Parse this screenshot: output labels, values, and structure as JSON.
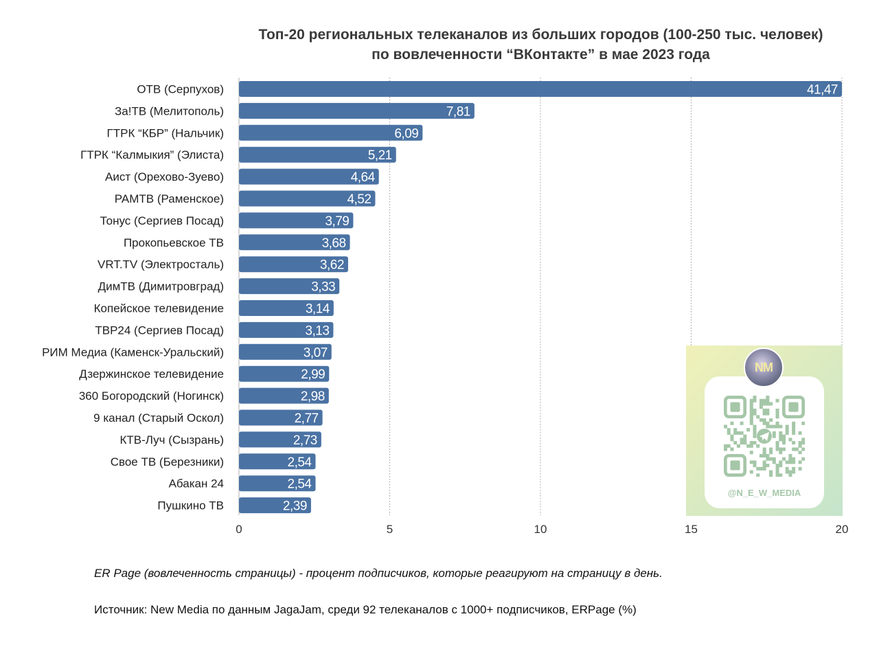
{
  "chart_data": {
    "type": "bar",
    "orientation": "horizontal",
    "title_lines": [
      "Топ-20 региональных телеканалов из больших городов (100-250 тыс. человек)",
      "по вовлеченности “ВКонтакте” в мае 2023 года"
    ],
    "categories": [
      "ОТВ (Серпухов)",
      "За!ТВ (Мелитополь)",
      "ГТРК “КБР” (Нальчик)",
      "ГТРК “Калмыкия” (Элиста)",
      "Аист (Орехово-Зуево)",
      "РАМТВ (Раменское)",
      "Тонус (Сергиев Посад)",
      "Прокопьевское ТВ",
      "VRT.TV (Электросталь)",
      "ДимТВ (Димитровград)",
      "Копейское телевидение",
      "ТВР24 (Сергиев Посад)",
      "РИМ Медиа (Каменск-Уральский)",
      "Дзержинское телевидение",
      "360 Богородский (Ногинск)",
      "9 канал (Старый Оскол)",
      "КТВ-Луч (Сызрань)",
      "Свое ТВ (Березники)",
      "Абакан 24",
      "Пушкино ТВ"
    ],
    "values": [
      41.47,
      7.81,
      6.09,
      5.21,
      4.64,
      4.52,
      3.79,
      3.68,
      3.62,
      3.33,
      3.14,
      3.13,
      3.07,
      2.99,
      2.98,
      2.77,
      2.73,
      2.54,
      2.54,
      2.39
    ],
    "value_labels": [
      "41,47",
      "7,81",
      "6,09",
      "5,21",
      "4,64",
      "4,52",
      "3,79",
      "3,68",
      "3,62",
      "3,33",
      "3,14",
      "3,13",
      "3,07",
      "2,99",
      "2,98",
      "2,77",
      "2,73",
      "2,54",
      "2,54",
      "2,39"
    ],
    "xlim": [
      0,
      20
    ],
    "xticks": [
      0,
      5,
      10,
      15,
      20
    ],
    "bars_truncated_at_axis_max": true,
    "grid": "vertical-dotted",
    "legend": "none",
    "bar_color": "#4a72a3"
  },
  "notes": {
    "definition": "ER Page (вовлеченность страницы) - процент подписчиков, которые реагируют на страницу в день.",
    "source": "Источник: New Media по данным JagaJam, среди 92 телеканалов с 1000+ подписчиков, ERPage (%)"
  },
  "promo": {
    "avatar_text": "NM",
    "handle": "@N_E_W_MEDIA",
    "icon": "telegram-icon"
  }
}
